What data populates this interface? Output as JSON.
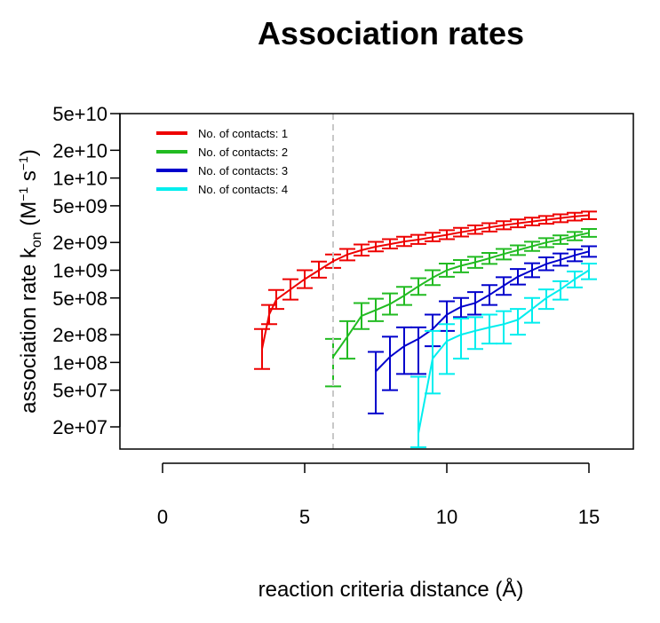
{
  "chart_data": {
    "type": "line",
    "title": "Association rates",
    "xlabel": "reaction criteria distance (Å)",
    "ylabel": {
      "prefix": "association rate k",
      "subscript": "on",
      "unit_open": " (M",
      "unit_exp1": "−1",
      "unit_mid": " s",
      "unit_exp2": "−1",
      "unit_close": ")"
    },
    "xlim": [
      0,
      16
    ],
    "ylim": [
      15000000,
      50000000000
    ],
    "y_scale": "log",
    "x_ticks": [
      0,
      5,
      10,
      15
    ],
    "x_tick_labels": [
      "0",
      "5",
      "10",
      "15"
    ],
    "y_ticks": [
      20000000,
      50000000,
      100000000,
      200000000,
      500000000,
      1000000000,
      2000000000,
      5000000000,
      10000000000,
      20000000000,
      50000000000
    ],
    "y_tick_labels": [
      "2e+07",
      "5e+07",
      "1e+08",
      "2e+08",
      "5e+08",
      "1e+09",
      "2e+09",
      "5e+09",
      "1e+10",
      "2e+10",
      "5e+10"
    ],
    "vline": {
      "x": 6,
      "color": "#c8c8c8",
      "style": "dashed"
    },
    "legend_position": "top-left",
    "series": [
      {
        "name": "No. of contacts: 1",
        "color": "#ee0000",
        "x": [
          3.5,
          3.75,
          4.0,
          4.5,
          5.0,
          5.5,
          6.0,
          6.5,
          7.0,
          7.5,
          8.0,
          8.5,
          9.0,
          9.5,
          10.0,
          10.5,
          11.0,
          11.5,
          12.0,
          12.5,
          13.0,
          13.5,
          14.0,
          14.5,
          15.0
        ],
        "y": [
          140000000,
          330000000,
          480000000,
          620000000,
          800000000,
          1000000000,
          1250000000,
          1480000000,
          1650000000,
          1800000000,
          1920000000,
          2050000000,
          2150000000,
          2280000000,
          2420000000,
          2580000000,
          2750000000,
          2920000000,
          3080000000,
          3230000000,
          3380000000,
          3530000000,
          3680000000,
          3830000000,
          3950000000
        ],
        "lo": [
          85000000,
          260000000,
          380000000,
          480000000,
          640000000,
          830000000,
          1060000000,
          1280000000,
          1440000000,
          1600000000,
          1720000000,
          1830000000,
          1930000000,
          2060000000,
          2170000000,
          2320000000,
          2480000000,
          2630000000,
          2780000000,
          2920000000,
          3060000000,
          3190000000,
          3320000000,
          3460000000,
          3580000000
        ],
        "hi": [
          230000000,
          420000000,
          610000000,
          800000000,
          1000000000,
          1240000000,
          1480000000,
          1700000000,
          1900000000,
          2030000000,
          2170000000,
          2310000000,
          2420000000,
          2550000000,
          2720000000,
          2880000000,
          3060000000,
          3240000000,
          3400000000,
          3560000000,
          3720000000,
          3880000000,
          4040000000,
          4200000000,
          4330000000
        ]
      },
      {
        "name": "No. of contacts: 2",
        "color": "#22bb22",
        "x": [
          6.0,
          6.5,
          7.0,
          7.5,
          8.0,
          8.5,
          9.0,
          9.5,
          10.0,
          10.5,
          11.0,
          11.5,
          12.0,
          12.5,
          13.0,
          13.5,
          14.0,
          14.5,
          15.0
        ],
        "y": [
          115000000,
          190000000,
          320000000,
          370000000,
          430000000,
          530000000,
          670000000,
          830000000,
          1000000000,
          1120000000,
          1220000000,
          1350000000,
          1500000000,
          1650000000,
          1820000000,
          2000000000,
          2150000000,
          2350000000,
          2550000000
        ],
        "lo": [
          55000000,
          110000000,
          230000000,
          280000000,
          330000000,
          420000000,
          540000000,
          690000000,
          850000000,
          950000000,
          1060000000,
          1170000000,
          1310000000,
          1460000000,
          1620000000,
          1780000000,
          1930000000,
          2110000000,
          2300000000
        ],
        "hi": [
          180000000,
          280000000,
          440000000,
          490000000,
          560000000,
          660000000,
          820000000,
          1000000000,
          1180000000,
          1290000000,
          1400000000,
          1540000000,
          1700000000,
          1860000000,
          2040000000,
          2230000000,
          2390000000,
          2600000000,
          2800000000
        ]
      },
      {
        "name": "No. of contacts: 3",
        "color": "#0000cc",
        "x": [
          7.5,
          8.0,
          8.5,
          9.0,
          9.5,
          10.0,
          10.5,
          11.0,
          11.5,
          12.0,
          12.5,
          13.0,
          13.5,
          14.0,
          14.5,
          15.0
        ],
        "y": [
          80000000,
          115000000,
          150000000,
          180000000,
          230000000,
          330000000,
          400000000,
          440000000,
          540000000,
          680000000,
          850000000,
          1000000000,
          1170000000,
          1300000000,
          1450000000,
          1600000000
        ],
        "lo": [
          28000000,
          50000000,
          75000000,
          75000000,
          150000000,
          220000000,
          310000000,
          330000000,
          420000000,
          540000000,
          700000000,
          840000000,
          1000000000,
          1120000000,
          1250000000,
          1400000000
        ],
        "hi": [
          130000000,
          190000000,
          240000000,
          240000000,
          330000000,
          460000000,
          500000000,
          580000000,
          690000000,
          840000000,
          1030000000,
          1190000000,
          1380000000,
          1520000000,
          1680000000,
          1820000000
        ]
      },
      {
        "name": "No. of contacts: 4",
        "color": "#00eeee",
        "x": [
          9.0,
          9.5,
          10.0,
          10.5,
          11.0,
          11.5,
          12.0,
          12.5,
          13.0,
          13.5,
          14.0,
          14.5,
          15.0
        ],
        "y": [
          17000000,
          110000000,
          170000000,
          200000000,
          220000000,
          240000000,
          260000000,
          290000000,
          380000000,
          500000000,
          620000000,
          800000000,
          1000000000
        ],
        "lo": [
          12000000,
          46000000,
          75000000,
          110000000,
          140000000,
          160000000,
          160000000,
          200000000,
          270000000,
          380000000,
          480000000,
          650000000,
          800000000
        ],
        "hi": [
          70000000,
          220000000,
          260000000,
          300000000,
          310000000,
          330000000,
          360000000,
          380000000,
          500000000,
          620000000,
          760000000,
          970000000,
          1180000000
        ]
      }
    ]
  }
}
